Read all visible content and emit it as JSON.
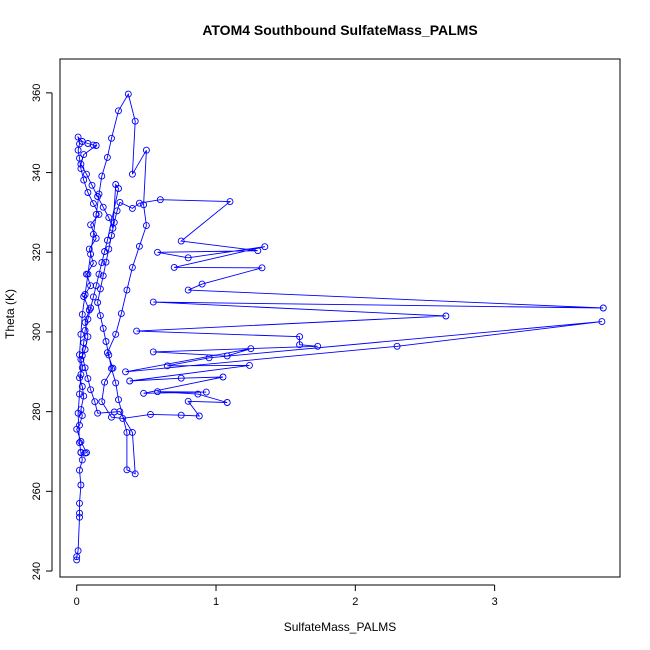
{
  "chart_data": {
    "type": "line",
    "title": "ATOM4 Southbound SulfateMass_PALMS",
    "xlabel": "SulfateMass_PALMS",
    "ylabel": "Theta (K)",
    "xlim": [
      -0.12,
      3.9
    ],
    "ylim": [
      238.5,
      368.5
    ],
    "x_ticks": [
      0,
      1,
      2,
      3
    ],
    "y_ticks": [
      240,
      260,
      280,
      300,
      320,
      340,
      360
    ],
    "grid": false,
    "legend": "none",
    "series_color": "#0000ff",
    "marker": "open-circle",
    "series": [
      {
        "name": "",
        "points": [
          [
            0.0,
            242.8
          ],
          [
            0.0,
            243.6
          ],
          [
            0.01,
            245.1
          ],
          [
            0.02,
            253.5
          ],
          [
            0.02,
            254.5
          ],
          [
            0.02,
            257.0
          ],
          [
            0.03,
            261.6
          ],
          [
            0.02,
            265.3
          ],
          [
            0.04,
            267.9
          ],
          [
            0.03,
            269.7
          ],
          [
            0.06,
            269.6
          ],
          [
            0.07,
            269.7
          ],
          [
            0.03,
            272.5
          ],
          [
            0.0,
            275.6
          ],
          [
            0.02,
            276.6
          ],
          [
            0.04,
            279.0
          ],
          [
            0.03,
            280.5
          ],
          [
            0.05,
            283.9
          ],
          [
            0.04,
            286.3
          ],
          [
            0.02,
            288.5
          ],
          [
            0.04,
            291.0
          ],
          [
            0.03,
            293.1
          ],
          [
            0.06,
            295.6
          ],
          [
            0.08,
            298.8
          ],
          [
            0.06,
            302.4
          ],
          [
            0.09,
            305.5
          ],
          [
            0.05,
            308.9
          ],
          [
            0.1,
            311.6
          ],
          [
            0.07,
            314.5
          ],
          [
            0.12,
            317.2
          ],
          [
            0.09,
            320.8
          ],
          [
            0.14,
            323.5
          ],
          [
            0.1,
            326.9
          ],
          [
            0.16,
            329.5
          ],
          [
            0.12,
            332.2
          ],
          [
            0.08,
            335.0
          ],
          [
            0.05,
            338.1
          ],
          [
            0.03,
            341.0
          ],
          [
            0.02,
            343.6
          ],
          [
            0.01,
            345.6
          ],
          [
            0.02,
            347.2
          ],
          [
            0.01,
            348.9
          ],
          [
            0.04,
            347.8
          ],
          [
            0.08,
            347.3
          ],
          [
            0.12,
            346.9
          ],
          [
            0.14,
            346.8
          ],
          [
            0.05,
            344.5
          ],
          [
            0.03,
            342.1
          ],
          [
            0.07,
            339.6
          ],
          [
            0.11,
            336.8
          ],
          [
            0.15,
            334.0
          ],
          [
            0.19,
            331.3
          ],
          [
            0.23,
            328.7
          ],
          [
            0.26,
            326.0
          ],
          [
            0.28,
            337.0
          ],
          [
            0.3,
            336.0
          ],
          [
            0.22,
            323.0
          ],
          [
            0.2,
            320.2
          ],
          [
            0.18,
            317.4
          ],
          [
            0.16,
            314.5
          ],
          [
            0.14,
            311.6
          ],
          [
            0.12,
            308.8
          ],
          [
            0.1,
            306.0
          ],
          [
            0.08,
            303.2
          ],
          [
            0.06,
            300.4
          ],
          [
            0.05,
            297.3
          ],
          [
            0.04,
            294.1
          ],
          [
            0.06,
            291.0
          ],
          [
            0.08,
            288.3
          ],
          [
            0.1,
            285.5
          ],
          [
            0.13,
            282.5
          ],
          [
            0.15,
            279.6
          ],
          [
            0.27,
            279.9
          ],
          [
            0.31,
            280.0
          ],
          [
            0.4,
            274.8
          ],
          [
            0.42,
            264.4
          ],
          [
            0.36,
            265.4
          ],
          [
            0.36,
            274.8
          ],
          [
            0.3,
            283.0
          ],
          [
            0.28,
            287.2
          ],
          [
            0.25,
            290.8
          ],
          [
            0.23,
            294.2
          ],
          [
            0.21,
            297.6
          ],
          [
            0.19,
            300.9
          ],
          [
            0.17,
            304.1
          ],
          [
            0.15,
            307.4
          ],
          [
            0.17,
            310.8
          ],
          [
            0.19,
            314.1
          ],
          [
            0.21,
            317.5
          ],
          [
            0.23,
            320.8
          ],
          [
            0.25,
            324.2
          ],
          [
            0.27,
            327.5
          ],
          [
            0.29,
            330.4
          ],
          [
            0.31,
            332.5
          ],
          [
            0.4,
            331.0
          ],
          [
            0.45,
            332.3
          ],
          [
            0.6,
            333.2
          ],
          [
            1.1,
            332.7
          ],
          [
            0.75,
            322.8
          ],
          [
            1.3,
            320.4
          ],
          [
            0.58,
            320.0
          ],
          [
            0.8,
            318.6
          ],
          [
            1.35,
            321.4
          ],
          [
            0.7,
            316.2
          ],
          [
            1.33,
            316.1
          ],
          [
            0.9,
            312.0
          ],
          [
            0.8,
            310.5
          ],
          [
            3.78,
            306.0
          ],
          [
            0.55,
            307.5
          ],
          [
            2.65,
            304.0
          ],
          [
            0.43,
            300.2
          ],
          [
            1.6,
            298.8
          ],
          [
            1.6,
            296.8
          ],
          [
            1.73,
            296.4
          ],
          [
            0.55,
            295.0
          ],
          [
            1.08,
            294.0
          ],
          [
            1.25,
            295.8
          ],
          [
            0.35,
            290.0
          ],
          [
            2.3,
            296.4
          ],
          [
            3.77,
            302.6
          ],
          [
            0.95,
            293.5
          ],
          [
            0.65,
            291.5
          ],
          [
            1.24,
            291.6
          ],
          [
            0.38,
            287.7
          ],
          [
            0.75,
            288.4
          ],
          [
            1.05,
            288.7
          ],
          [
            0.48,
            284.6
          ],
          [
            0.93,
            284.9
          ],
          [
            0.58,
            285.0
          ],
          [
            0.87,
            284.4
          ],
          [
            1.08,
            282.3
          ],
          [
            0.8,
            282.6
          ],
          [
            0.88,
            278.9
          ],
          [
            0.75,
            279.1
          ],
          [
            0.53,
            279.3
          ],
          [
            0.33,
            278.3
          ],
          [
            0.25,
            278.6
          ],
          [
            0.18,
            282.5
          ],
          [
            0.2,
            287.4
          ],
          [
            0.26,
            290.9
          ],
          [
            0.22,
            294.8
          ],
          [
            0.28,
            299.4
          ],
          [
            0.32,
            304.6
          ],
          [
            0.36,
            310.5
          ],
          [
            0.4,
            316.2
          ],
          [
            0.45,
            321.5
          ],
          [
            0.5,
            326.7
          ],
          [
            0.48,
            331.9
          ],
          [
            0.5,
            345.6
          ],
          [
            0.4,
            339.6
          ],
          [
            0.42,
            352.9
          ],
          [
            0.37,
            359.7
          ],
          [
            0.3,
            355.5
          ],
          [
            0.25,
            348.6
          ],
          [
            0.22,
            343.8
          ],
          [
            0.18,
            339.1
          ],
          [
            0.16,
            334.6
          ],
          [
            0.14,
            329.5
          ],
          [
            0.12,
            324.5
          ],
          [
            0.1,
            319.5
          ],
          [
            0.08,
            314.5
          ],
          [
            0.06,
            309.4
          ],
          [
            0.04,
            304.4
          ],
          [
            0.03,
            299.4
          ],
          [
            0.02,
            294.3
          ],
          [
            0.03,
            289.3
          ],
          [
            0.02,
            284.4
          ],
          [
            0.01,
            279.6
          ],
          [
            0.02,
            272.2
          ],
          [
            0.03,
            269.8
          ]
        ]
      }
    ]
  }
}
